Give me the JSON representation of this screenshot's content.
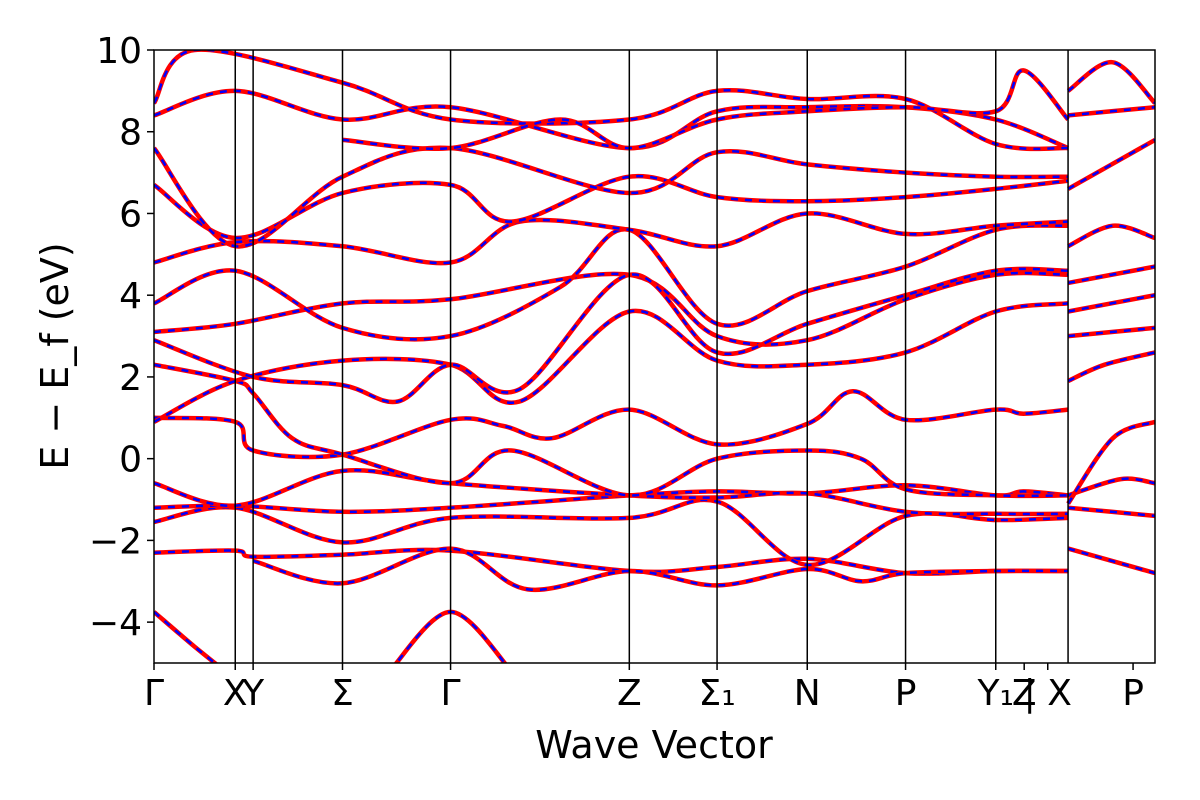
{
  "chart_data": {
    "type": "line",
    "title": "",
    "xlabel": "Wave Vector",
    "ylabel": "E − E_f (eV)",
    "ylim": [
      -5,
      10
    ],
    "y_ticks": [
      -4,
      -2,
      0,
      2,
      4,
      6,
      8,
      10
    ],
    "y_tick_labels": [
      "−4",
      "−2",
      "0",
      "2",
      "4",
      "6",
      "8",
      "10"
    ],
    "x_range": [
      0,
      11.2
    ],
    "x_ticks": [
      {
        "x": 0.0,
        "label": "Γ"
      },
      {
        "x": 1.0,
        "label": "X"
      },
      {
        "x": 1.22,
        "label": "Y"
      },
      {
        "x": 2.32,
        "label": "Σ"
      },
      {
        "x": 3.65,
        "label": "Γ"
      },
      {
        "x": 5.85,
        "label": "Z"
      },
      {
        "x": 6.93,
        "label": "Σ₁"
      },
      {
        "x": 8.04,
        "label": "N"
      },
      {
        "x": 9.25,
        "label": "P"
      },
      {
        "x": 10.36,
        "label": "Y₁"
      },
      {
        "x": 10.71,
        "label": "Z"
      },
      {
        "x": 11.0,
        "label": "| X"
      },
      {
        "x": 12.05,
        "label": "P"
      }
    ],
    "x_max": 12.32,
    "vertical_lines": [
      1.0,
      1.22,
      2.32,
      3.65,
      5.85,
      6.93,
      8.04,
      9.25,
      10.36,
      11.25
    ],
    "grid": false,
    "series_styles": [
      {
        "color": "#ff0000",
        "style": "solid"
      },
      {
        "color": "#0000ff",
        "style": "dashed"
      }
    ],
    "bands": [
      [
        [
          0,
          -3.75
        ],
        [
          0.5,
          -4.6
        ],
        [
          1.0,
          -5.4
        ]
      ],
      [
        [
          2.9,
          -5.2
        ],
        [
          3.65,
          -3.75
        ],
        [
          4.4,
          -5.2
        ]
      ],
      [
        [
          0,
          -2.3
        ],
        [
          1.0,
          -2.25
        ],
        [
          1.22,
          -2.4
        ],
        [
          2.32,
          -2.35
        ],
        [
          3.65,
          -2.25
        ],
        [
          5.85,
          -2.75
        ],
        [
          6.93,
          -2.65
        ],
        [
          8.04,
          -2.45
        ],
        [
          9.25,
          -2.8
        ],
        [
          10.36,
          -2.75
        ],
        [
          11.25,
          -2.75
        ]
      ],
      [
        [
          1.22,
          -2.5
        ],
        [
          2.32,
          -3.05
        ],
        [
          3.65,
          -2.2
        ],
        [
          4.6,
          -3.2
        ],
        [
          5.85,
          -2.75
        ],
        [
          6.93,
          -3.1
        ],
        [
          8.04,
          -2.7
        ],
        [
          8.7,
          -3.0
        ],
        [
          9.25,
          -2.8
        ],
        [
          10.36,
          -2.75
        ],
        [
          11.25,
          -2.75
        ]
      ],
      [
        [
          0,
          -1.55
        ],
        [
          1.0,
          -1.2
        ],
        [
          2.32,
          -2.05
        ],
        [
          3.65,
          -1.45
        ],
        [
          5.85,
          -1.45
        ],
        [
          6.93,
          -1.05
        ],
        [
          8.04,
          -2.6
        ],
        [
          9.25,
          -1.4
        ],
        [
          10.36,
          -1.5
        ],
        [
          11.25,
          -1.45
        ]
      ],
      [
        [
          0,
          -1.2
        ],
        [
          1.0,
          -1.15
        ],
        [
          2.32,
          -1.3
        ],
        [
          3.65,
          -1.2
        ],
        [
          5.85,
          -0.9
        ],
        [
          6.93,
          -0.8
        ],
        [
          8.04,
          -0.85
        ],
        [
          9.25,
          -0.65
        ],
        [
          10.36,
          -0.9
        ],
        [
          10.7,
          -0.8
        ],
        [
          11.25,
          -0.9
        ]
      ],
      [
        [
          0,
          -0.6
        ],
        [
          1.0,
          -1.15
        ],
        [
          2.32,
          -0.3
        ],
        [
          3.65,
          -0.6
        ],
        [
          5.85,
          -0.9
        ],
        [
          6.93,
          -0.95
        ],
        [
          8.04,
          -0.85
        ],
        [
          9.25,
          -1.3
        ],
        [
          10.36,
          -1.35
        ],
        [
          11.25,
          -1.35
        ]
      ],
      [
        [
          0,
          1.0
        ],
        [
          1.0,
          0.9
        ],
        [
          1.22,
          0.2
        ],
        [
          2.32,
          0.1
        ],
        [
          3.65,
          0.95
        ],
        [
          4.3,
          0.8
        ],
        [
          4.9,
          0.5
        ],
        [
          5.85,
          1.2
        ],
        [
          6.93,
          0.35
        ],
        [
          8.04,
          0.85
        ],
        [
          8.6,
          1.65
        ],
        [
          9.25,
          0.95
        ],
        [
          10.36,
          1.2
        ],
        [
          10.7,
          1.1
        ],
        [
          11.25,
          1.2
        ]
      ],
      [
        [
          0,
          2.3
        ],
        [
          1.0,
          1.9
        ],
        [
          1.22,
          1.6
        ],
        [
          1.7,
          0.5
        ],
        [
          2.32,
          0.1
        ],
        [
          3.65,
          -0.6
        ],
        [
          4.4,
          0.2
        ],
        [
          5.85,
          -0.9
        ],
        [
          6.93,
          0.0
        ],
        [
          8.04,
          0.2
        ],
        [
          8.7,
          0.0
        ],
        [
          9.25,
          -0.75
        ],
        [
          10.36,
          -0.9
        ],
        [
          11.25,
          -0.9
        ]
      ],
      [
        [
          0,
          0.9
        ],
        [
          1.0,
          1.9
        ],
        [
          2.32,
          2.4
        ],
        [
          3.65,
          2.3
        ],
        [
          4.5,
          1.4
        ],
        [
          5.85,
          3.6
        ],
        [
          6.93,
          2.4
        ],
        [
          8.04,
          2.3
        ],
        [
          9.25,
          2.6
        ],
        [
          10.36,
          3.6
        ],
        [
          11.25,
          3.8
        ]
      ],
      [
        [
          0,
          3.1
        ],
        [
          1.0,
          3.3
        ],
        [
          2.32,
          3.8
        ],
        [
          3.65,
          3.9
        ],
        [
          5.85,
          4.5
        ],
        [
          6.93,
          3.0
        ],
        [
          8.04,
          2.9
        ],
        [
          9.25,
          3.9
        ],
        [
          10.36,
          4.5
        ],
        [
          11.25,
          4.5
        ]
      ],
      [
        [
          0,
          2.9
        ],
        [
          1.22,
          2.0
        ],
        [
          2.32,
          1.8
        ],
        [
          3.0,
          1.4
        ],
        [
          3.65,
          2.3
        ],
        [
          4.5,
          1.7
        ],
        [
          5.85,
          4.5
        ],
        [
          6.93,
          2.6
        ],
        [
          8.04,
          3.3
        ],
        [
          9.25,
          4.0
        ],
        [
          10.36,
          4.6
        ],
        [
          11.25,
          4.6
        ]
      ],
      [
        [
          0,
          3.8
        ],
        [
          1.0,
          4.6
        ],
        [
          2.32,
          3.2
        ],
        [
          3.65,
          3.0
        ],
        [
          5.0,
          4.2
        ],
        [
          5.85,
          5.6
        ],
        [
          6.93,
          3.3
        ],
        [
          8.04,
          4.1
        ],
        [
          9.25,
          4.7
        ],
        [
          10.36,
          5.6
        ],
        [
          11.25,
          5.7
        ]
      ],
      [
        [
          0,
          4.8
        ],
        [
          1.0,
          5.3
        ],
        [
          2.32,
          5.2
        ],
        [
          3.65,
          4.8
        ],
        [
          4.5,
          5.8
        ],
        [
          5.85,
          5.6
        ],
        [
          6.93,
          5.2
        ],
        [
          8.04,
          6.0
        ],
        [
          9.25,
          5.5
        ],
        [
          10.36,
          5.7
        ],
        [
          11.25,
          5.8
        ]
      ],
      [
        [
          0,
          6.7
        ],
        [
          1.0,
          5.4
        ],
        [
          2.32,
          6.5
        ],
        [
          3.65,
          6.7
        ],
        [
          4.4,
          5.8
        ],
        [
          5.85,
          6.9
        ],
        [
          6.93,
          6.4
        ],
        [
          8.04,
          6.3
        ],
        [
          9.25,
          6.4
        ],
        [
          10.36,
          6.6
        ],
        [
          11.25,
          6.8
        ]
      ],
      [
        [
          0,
          7.6
        ],
        [
          1.0,
          5.2
        ],
        [
          2.32,
          6.9
        ],
        [
          3.65,
          7.6
        ],
        [
          5.85,
          6.5
        ],
        [
          6.93,
          7.5
        ],
        [
          8.04,
          7.2
        ],
        [
          9.25,
          7.0
        ],
        [
          10.36,
          6.9
        ],
        [
          11.25,
          6.9
        ]
      ],
      [
        [
          0,
          8.4
        ],
        [
          1.0,
          9.0
        ],
        [
          2.32,
          8.3
        ],
        [
          3.65,
          8.6
        ],
        [
          5.85,
          7.6
        ],
        [
          6.93,
          8.5
        ],
        [
          8.04,
          8.6
        ],
        [
          9.25,
          8.6
        ],
        [
          10.36,
          8.3
        ],
        [
          11.25,
          7.6
        ]
      ],
      [
        [
          0,
          8.7
        ],
        [
          0.5,
          10.0
        ],
        [
          2.32,
          9.2
        ],
        [
          3.65,
          8.3
        ],
        [
          5.85,
          8.3
        ],
        [
          6.93,
          9.0
        ],
        [
          8.04,
          8.8
        ],
        [
          9.25,
          8.8
        ],
        [
          10.36,
          7.7
        ],
        [
          11.25,
          7.6
        ]
      ],
      [
        [
          2.32,
          7.8
        ],
        [
          3.65,
          7.6
        ],
        [
          5.0,
          8.3
        ],
        [
          5.85,
          7.6
        ],
        [
          6.93,
          8.3
        ],
        [
          8.04,
          8.5
        ],
        [
          9.25,
          8.6
        ],
        [
          10.36,
          8.5
        ],
        [
          10.7,
          9.5
        ],
        [
          11.25,
          8.3
        ]
      ],
      [
        [
          11.25,
          1.9
        ],
        [
          11.7,
          2.3
        ],
        [
          12.32,
          2.6
        ]
      ],
      [
        [
          11.25,
          3.0
        ],
        [
          12.32,
          3.2
        ]
      ],
      [
        [
          11.25,
          3.6
        ],
        [
          12.32,
          4.0
        ]
      ],
      [
        [
          11.25,
          4.3
        ],
        [
          12.32,
          4.7
        ]
      ],
      [
        [
          11.25,
          5.2
        ],
        [
          11.8,
          5.7
        ],
        [
          12.32,
          5.4
        ]
      ],
      [
        [
          11.25,
          6.6
        ],
        [
          12.32,
          7.8
        ]
      ],
      [
        [
          11.25,
          8.4
        ],
        [
          12.32,
          8.6
        ]
      ],
      [
        [
          11.25,
          9.0
        ],
        [
          11.8,
          9.7
        ],
        [
          12.32,
          8.7
        ]
      ],
      [
        [
          11.25,
          -0.9
        ],
        [
          11.9,
          -0.5
        ],
        [
          12.32,
          -0.6
        ]
      ],
      [
        [
          11.25,
          -1.2
        ],
        [
          12.32,
          -1.4
        ]
      ],
      [
        [
          11.25,
          -1.1
        ],
        [
          11.8,
          0.5
        ],
        [
          12.32,
          0.9
        ]
      ],
      [
        [
          11.25,
          -2.2
        ],
        [
          12.32,
          -2.8
        ]
      ]
    ]
  }
}
